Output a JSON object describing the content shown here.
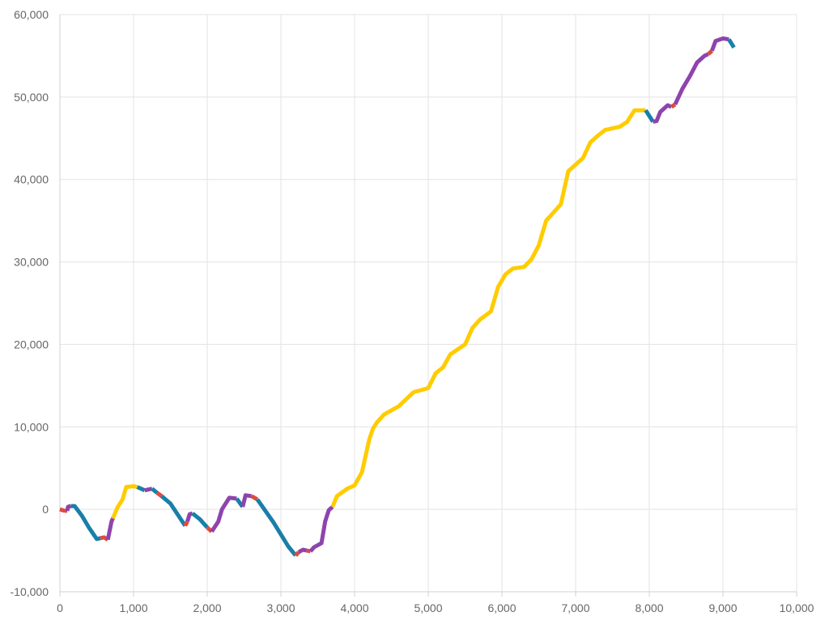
{
  "chart_data": {
    "type": "line",
    "title": "",
    "xlabel": "",
    "ylabel": "",
    "xlim": [
      0,
      10000
    ],
    "ylim": [
      -10000,
      60000
    ],
    "x_ticks": [
      0,
      1000,
      2000,
      3000,
      4000,
      5000,
      6000,
      7000,
      8000,
      9000,
      10000
    ],
    "y_ticks": [
      -10000,
      0,
      10000,
      20000,
      30000,
      40000,
      50000,
      60000
    ],
    "x_tick_labels": [
      "0",
      "1,000",
      "2,000",
      "3,000",
      "4,000",
      "5,000",
      "6,000",
      "7,000",
      "8,000",
      "9,000",
      "10,000"
    ],
    "y_tick_labels": [
      "-10,000",
      "0",
      "10,000",
      "20,000",
      "30,000",
      "40,000",
      "50,000",
      "60,000"
    ],
    "grid": true,
    "legend": "none",
    "segment_colors": {
      "red": "#e04b3c",
      "blue": "#1a7fa8",
      "purple": "#8e44ad",
      "yellow": "#ffcc00"
    },
    "segments": [
      {
        "color": "red",
        "points": [
          [
            0,
            0
          ],
          [
            50,
            -150
          ],
          [
            100,
            -200
          ]
        ]
      },
      {
        "color": "purple",
        "points": [
          [
            100,
            -200
          ],
          [
            110,
            300
          ],
          [
            150,
            400
          ]
        ]
      },
      {
        "color": "blue",
        "points": [
          [
            150,
            400
          ],
          [
            200,
            400
          ],
          [
            300,
            -800
          ],
          [
            400,
            -2300
          ],
          [
            500,
            -3600
          ],
          [
            550,
            -3500
          ]
        ]
      },
      {
        "color": "red",
        "points": [
          [
            550,
            -3500
          ],
          [
            600,
            -3400
          ],
          [
            650,
            -3700
          ]
        ]
      },
      {
        "color": "purple",
        "points": [
          [
            650,
            -3700
          ],
          [
            700,
            -1500
          ],
          [
            720,
            -1100
          ]
        ]
      },
      {
        "color": "yellow",
        "points": [
          [
            720,
            -1100
          ],
          [
            780,
            200
          ],
          [
            850,
            1200
          ],
          [
            900,
            2700
          ],
          [
            1000,
            2800
          ],
          [
            1050,
            2700
          ]
        ]
      },
      {
        "color": "blue",
        "points": [
          [
            1050,
            2700
          ],
          [
            1150,
            2300
          ]
        ]
      },
      {
        "color": "purple",
        "points": [
          [
            1150,
            2300
          ],
          [
            1250,
            2500
          ]
        ]
      },
      {
        "color": "blue",
        "points": [
          [
            1250,
            2500
          ],
          [
            1320,
            2000
          ]
        ]
      },
      {
        "color": "red",
        "points": [
          [
            1320,
            2000
          ],
          [
            1380,
            1600
          ]
        ]
      },
      {
        "color": "blue",
        "points": [
          [
            1380,
            1600
          ],
          [
            1500,
            700
          ],
          [
            1700,
            -2000
          ]
        ]
      },
      {
        "color": "red",
        "points": [
          [
            1700,
            -2000
          ],
          [
            1730,
            -1500
          ]
        ]
      },
      {
        "color": "purple",
        "points": [
          [
            1730,
            -1500
          ],
          [
            1760,
            -600
          ],
          [
            1800,
            -500
          ]
        ]
      },
      {
        "color": "blue",
        "points": [
          [
            1800,
            -500
          ],
          [
            1900,
            -1200
          ],
          [
            2000,
            -2200
          ]
        ]
      },
      {
        "color": "red",
        "points": [
          [
            2000,
            -2200
          ],
          [
            2060,
            -2700
          ]
        ]
      },
      {
        "color": "purple",
        "points": [
          [
            2060,
            -2700
          ],
          [
            2150,
            -1500
          ],
          [
            2200,
            0
          ],
          [
            2300,
            1400
          ],
          [
            2400,
            1300
          ]
        ]
      },
      {
        "color": "blue",
        "points": [
          [
            2400,
            1300
          ],
          [
            2480,
            300
          ]
        ]
      },
      {
        "color": "purple",
        "points": [
          [
            2480,
            300
          ],
          [
            2520,
            1700
          ],
          [
            2600,
            1600
          ]
        ]
      },
      {
        "color": "red",
        "points": [
          [
            2600,
            1600
          ],
          [
            2680,
            1200
          ]
        ]
      },
      {
        "color": "blue",
        "points": [
          [
            2680,
            1200
          ],
          [
            2900,
            -1600
          ],
          [
            3100,
            -4500
          ],
          [
            3200,
            -5600
          ]
        ]
      },
      {
        "color": "red",
        "points": [
          [
            3200,
            -5600
          ],
          [
            3240,
            -5200
          ]
        ]
      },
      {
        "color": "purple",
        "points": [
          [
            3240,
            -5200
          ],
          [
            3300,
            -4900
          ],
          [
            3350,
            -5000
          ]
        ]
      },
      {
        "color": "red",
        "points": [
          [
            3350,
            -5000
          ],
          [
            3400,
            -5100
          ]
        ]
      },
      {
        "color": "purple",
        "points": [
          [
            3400,
            -5100
          ],
          [
            3450,
            -4600
          ],
          [
            3550,
            -4100
          ],
          [
            3600,
            -1500
          ],
          [
            3650,
            -100
          ],
          [
            3700,
            300
          ]
        ]
      },
      {
        "color": "yellow",
        "points": [
          [
            3700,
            300
          ],
          [
            3760,
            1600
          ],
          [
            3900,
            2500
          ],
          [
            4000,
            2900
          ],
          [
            4100,
            4500
          ],
          [
            4200,
            8500
          ],
          [
            4250,
            9800
          ],
          [
            4300,
            10500
          ],
          [
            4400,
            11500
          ],
          [
            4600,
            12500
          ],
          [
            4800,
            14200
          ],
          [
            5000,
            14700
          ],
          [
            5100,
            16500
          ],
          [
            5200,
            17200
          ],
          [
            5300,
            18800
          ],
          [
            5500,
            20000
          ],
          [
            5600,
            22000
          ],
          [
            5700,
            23000
          ],
          [
            5850,
            24000
          ],
          [
            5950,
            27000
          ],
          [
            6050,
            28500
          ],
          [
            6150,
            29200
          ],
          [
            6300,
            29400
          ],
          [
            6400,
            30300
          ],
          [
            6500,
            32000
          ],
          [
            6600,
            35000
          ],
          [
            6700,
            36000
          ],
          [
            6800,
            37000
          ],
          [
            6900,
            41000
          ],
          [
            7000,
            41800
          ],
          [
            7100,
            42600
          ],
          [
            7200,
            44500
          ],
          [
            7300,
            45300
          ],
          [
            7400,
            46000
          ],
          [
            7600,
            46400
          ],
          [
            7700,
            47000
          ],
          [
            7800,
            48400
          ],
          [
            7950,
            48400
          ]
        ]
      },
      {
        "color": "blue",
        "points": [
          [
            7950,
            48400
          ],
          [
            8050,
            47000
          ]
        ]
      },
      {
        "color": "purple",
        "points": [
          [
            8050,
            47000
          ],
          [
            8100,
            47100
          ],
          [
            8150,
            48200
          ],
          [
            8250,
            49000
          ],
          [
            8300,
            48800
          ]
        ]
      },
      {
        "color": "red",
        "points": [
          [
            8300,
            48800
          ],
          [
            8350,
            49100
          ]
        ]
      },
      {
        "color": "purple",
        "points": [
          [
            8350,
            49100
          ],
          [
            8450,
            51000
          ],
          [
            8550,
            52500
          ],
          [
            8650,
            54200
          ],
          [
            8750,
            55000
          ],
          [
            8800,
            55200
          ]
        ]
      },
      {
        "color": "red",
        "points": [
          [
            8800,
            55200
          ],
          [
            8850,
            55600
          ]
        ]
      },
      {
        "color": "purple",
        "points": [
          [
            8850,
            55600
          ],
          [
            8900,
            56800
          ],
          [
            9000,
            57100
          ],
          [
            9080,
            57000
          ]
        ]
      },
      {
        "color": "blue",
        "points": [
          [
            9080,
            57000
          ],
          [
            9150,
            56000
          ]
        ]
      }
    ]
  }
}
